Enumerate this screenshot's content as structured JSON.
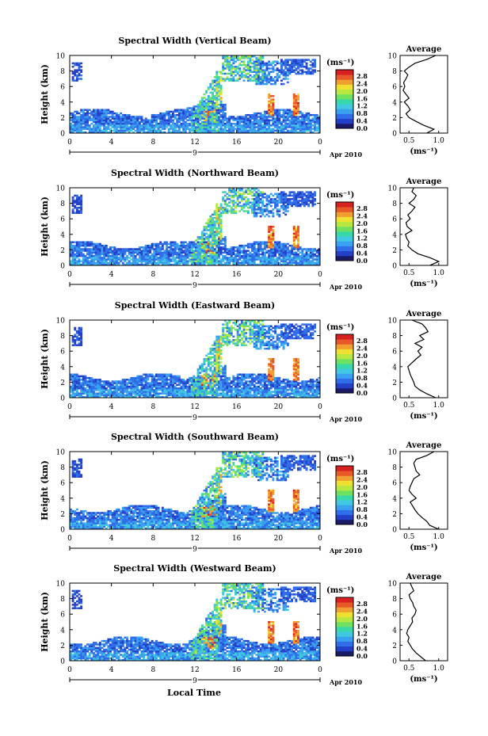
{
  "figure": {
    "shared": {
      "ylabel": "Height (km)",
      "units_label": "(ms⁻¹)",
      "date_label": "Apr 2010",
      "day_label": "9",
      "xlabel_bottom": "Local Time",
      "avg_title": "Average",
      "avg_xlabel": "(ms⁻¹)"
    },
    "colorbar": {
      "ticks": [
        "0.0",
        "0.4",
        "0.8",
        "1.2",
        "1.6",
        "2.0",
        "2.4",
        "2.8"
      ],
      "colors": [
        "#1a1a66",
        "#2540c8",
        "#2f6ee8",
        "#3aa0f0",
        "#40c8e0",
        "#38d8a8",
        "#70e060",
        "#b8e840",
        "#f0e030",
        "#f0a030",
        "#e85828",
        "#d82020"
      ]
    }
  },
  "chart_data": [
    {
      "type": "heatmap",
      "title": "Spectral Width (Vertical Beam)",
      "xticks": [
        "0",
        "4",
        "8",
        "12",
        "16",
        "20",
        "0"
      ],
      "xlim": [
        0,
        24
      ],
      "yticks": [
        "0",
        "2",
        "4",
        "6",
        "8",
        "10"
      ],
      "ylim": [
        0,
        10
      ],
      "average_profile": {
        "xticks": [
          "0.5",
          "1.0"
        ],
        "xlim": [
          0.35,
          1.15
        ],
        "heights": [
          0,
          0.5,
          1,
          1.5,
          2,
          2.5,
          3,
          3.5,
          4,
          4.5,
          5,
          5.5,
          6,
          6.5,
          7,
          7.5,
          8,
          8.5,
          9,
          9.5,
          10
        ],
        "values": [
          0.8,
          0.92,
          0.75,
          0.62,
          0.5,
          0.45,
          0.52,
          0.48,
          0.42,
          0.5,
          0.45,
          0.4,
          0.43,
          0.41,
          0.45,
          0.48,
          0.42,
          0.5,
          0.6,
          0.8,
          0.95
        ]
      }
    },
    {
      "type": "heatmap",
      "title": "Spectral Width (Northward Beam)",
      "xticks": [
        "0",
        "4",
        "8",
        "12",
        "16",
        "20",
        "0"
      ],
      "xlim": [
        0,
        24
      ],
      "yticks": [
        "0",
        "2",
        "4",
        "6",
        "8",
        "10"
      ],
      "ylim": [
        0,
        10
      ],
      "average_profile": {
        "xticks": [
          "0.5",
          "1.0"
        ],
        "xlim": [
          0.35,
          1.15
        ],
        "heights": [
          0,
          0.5,
          1,
          1.5,
          2,
          2.5,
          3,
          3.5,
          4,
          4.5,
          5,
          5.5,
          6,
          6.5,
          7,
          7.5,
          8,
          8.5,
          9,
          9.5,
          10
        ],
        "values": [
          0.85,
          1.0,
          0.85,
          0.65,
          0.55,
          0.48,
          0.5,
          0.46,
          0.44,
          0.55,
          0.47,
          0.45,
          0.52,
          0.48,
          0.55,
          0.6,
          0.5,
          0.58,
          0.62,
          0.55,
          0.58
        ]
      }
    },
    {
      "type": "heatmap",
      "title": "Spectral Width (Eastward Beam)",
      "xticks": [
        "0",
        "4",
        "8",
        "12",
        "16",
        "20",
        "0"
      ],
      "xlim": [
        0,
        24
      ],
      "yticks": [
        "0",
        "2",
        "4",
        "6",
        "8",
        "10"
      ],
      "ylim": [
        0,
        10
      ],
      "average_profile": {
        "xticks": [
          "0.5",
          "1.0"
        ],
        "xlim": [
          0.35,
          1.15
        ],
        "heights": [
          0,
          0.5,
          1,
          1.5,
          2,
          2.5,
          3,
          3.5,
          4,
          4.5,
          5,
          5.5,
          6,
          6.5,
          7,
          7.5,
          8,
          8.5,
          9,
          9.5,
          10
        ],
        "values": [
          0.95,
          0.8,
          0.68,
          0.6,
          0.58,
          0.55,
          0.52,
          0.5,
          0.48,
          0.55,
          0.62,
          0.7,
          0.65,
          0.72,
          0.6,
          0.75,
          0.68,
          0.82,
          0.78,
          0.72,
          0.55
        ]
      }
    },
    {
      "type": "heatmap",
      "title": "Spectral Width (Southward Beam)",
      "xticks": [
        "0",
        "4",
        "8",
        "12",
        "16",
        "20",
        "0"
      ],
      "xlim": [
        0,
        24
      ],
      "yticks": [
        "0",
        "2",
        "4",
        "6",
        "8",
        "10"
      ],
      "ylim": [
        0,
        10
      ],
      "average_profile": {
        "xticks": [
          "0.5",
          "1.0"
        ],
        "xlim": [
          0.35,
          1.15
        ],
        "heights": [
          0,
          0.5,
          1,
          1.5,
          2,
          2.5,
          3,
          3.5,
          4,
          4.5,
          5,
          5.5,
          6,
          6.5,
          7,
          7.5,
          8,
          8.5,
          9,
          9.5,
          10
        ],
        "values": [
          1.0,
          0.85,
          0.8,
          0.72,
          0.65,
          0.6,
          0.56,
          0.52,
          0.62,
          0.55,
          0.5,
          0.52,
          0.55,
          0.58,
          0.68,
          0.62,
          0.6,
          0.58,
          0.62,
          0.8,
          0.92
        ]
      }
    },
    {
      "type": "heatmap",
      "title": "Spectral Width (Westward Beam)",
      "xticks": [
        "0",
        "4",
        "8",
        "12",
        "16",
        "20",
        "0"
      ],
      "xlim": [
        0,
        24
      ],
      "yticks": [
        "0",
        "2",
        "4",
        "6",
        "8",
        "10"
      ],
      "ylim": [
        0,
        10
      ],
      "average_profile": {
        "xticks": [
          "0.5",
          "1.0"
        ],
        "xlim": [
          0.35,
          1.15
        ],
        "heights": [
          0,
          0.5,
          1,
          1.5,
          2,
          2.5,
          3,
          3.5,
          4,
          4.5,
          5,
          5.5,
          6,
          6.5,
          7,
          7.5,
          8,
          8.5,
          9,
          9.5,
          10
        ],
        "values": [
          0.78,
          0.7,
          0.62,
          0.56,
          0.52,
          0.48,
          0.5,
          0.46,
          0.48,
          0.52,
          0.56,
          0.55,
          0.6,
          0.62,
          0.58,
          0.56,
          0.52,
          0.5,
          0.58,
          0.55,
          0.52
        ]
      }
    }
  ]
}
